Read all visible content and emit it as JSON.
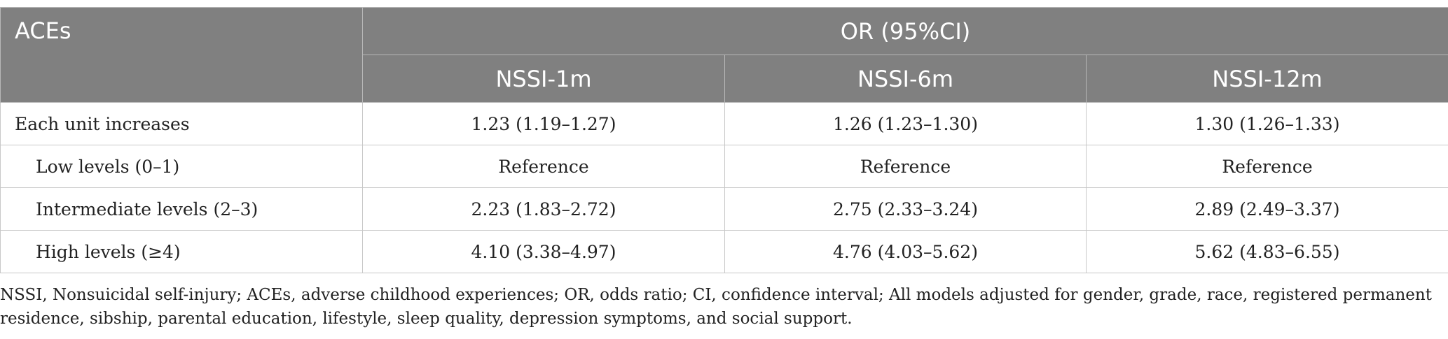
{
  "table": {
    "stub_header": "ACEs",
    "group_header": "OR (95%CI)",
    "columns": [
      "NSSI-1m",
      "NSSI-6m",
      "NSSI-12m"
    ],
    "rows": [
      {
        "label": "Each unit increases",
        "indent": false,
        "values": [
          "1.23 (1.19–1.27)",
          "1.26 (1.23–1.30)",
          "1.30 (1.26–1.33)"
        ]
      },
      {
        "label": "Low levels (0–1)",
        "indent": true,
        "values": [
          "Reference",
          "Reference",
          "Reference"
        ]
      },
      {
        "label": "Intermediate levels (2–3)",
        "indent": true,
        "values": [
          "2.23 (1.83–2.72)",
          "2.75 (2.33–3.24)",
          "2.89 (2.49–3.37)"
        ]
      },
      {
        "label": "High levels (≥4)",
        "indent": true,
        "values": [
          "4.10 (3.38–4.97)",
          "4.76 (4.03–5.62)",
          "5.62 (4.83–6.55)"
        ]
      }
    ]
  },
  "footnote": "NSSI, Nonsuicidal self-injury; ACEs, adverse childhood experiences; OR, odds ratio; CI, confidence interval; All models adjusted for gender, grade, race, registered permanent residence, sibship, parental education, lifestyle, sleep quality, depression symptoms, and social support.",
  "colors": {
    "header_bg": "#808080",
    "header_text": "#ffffff",
    "grid": "#c8c8c8"
  }
}
